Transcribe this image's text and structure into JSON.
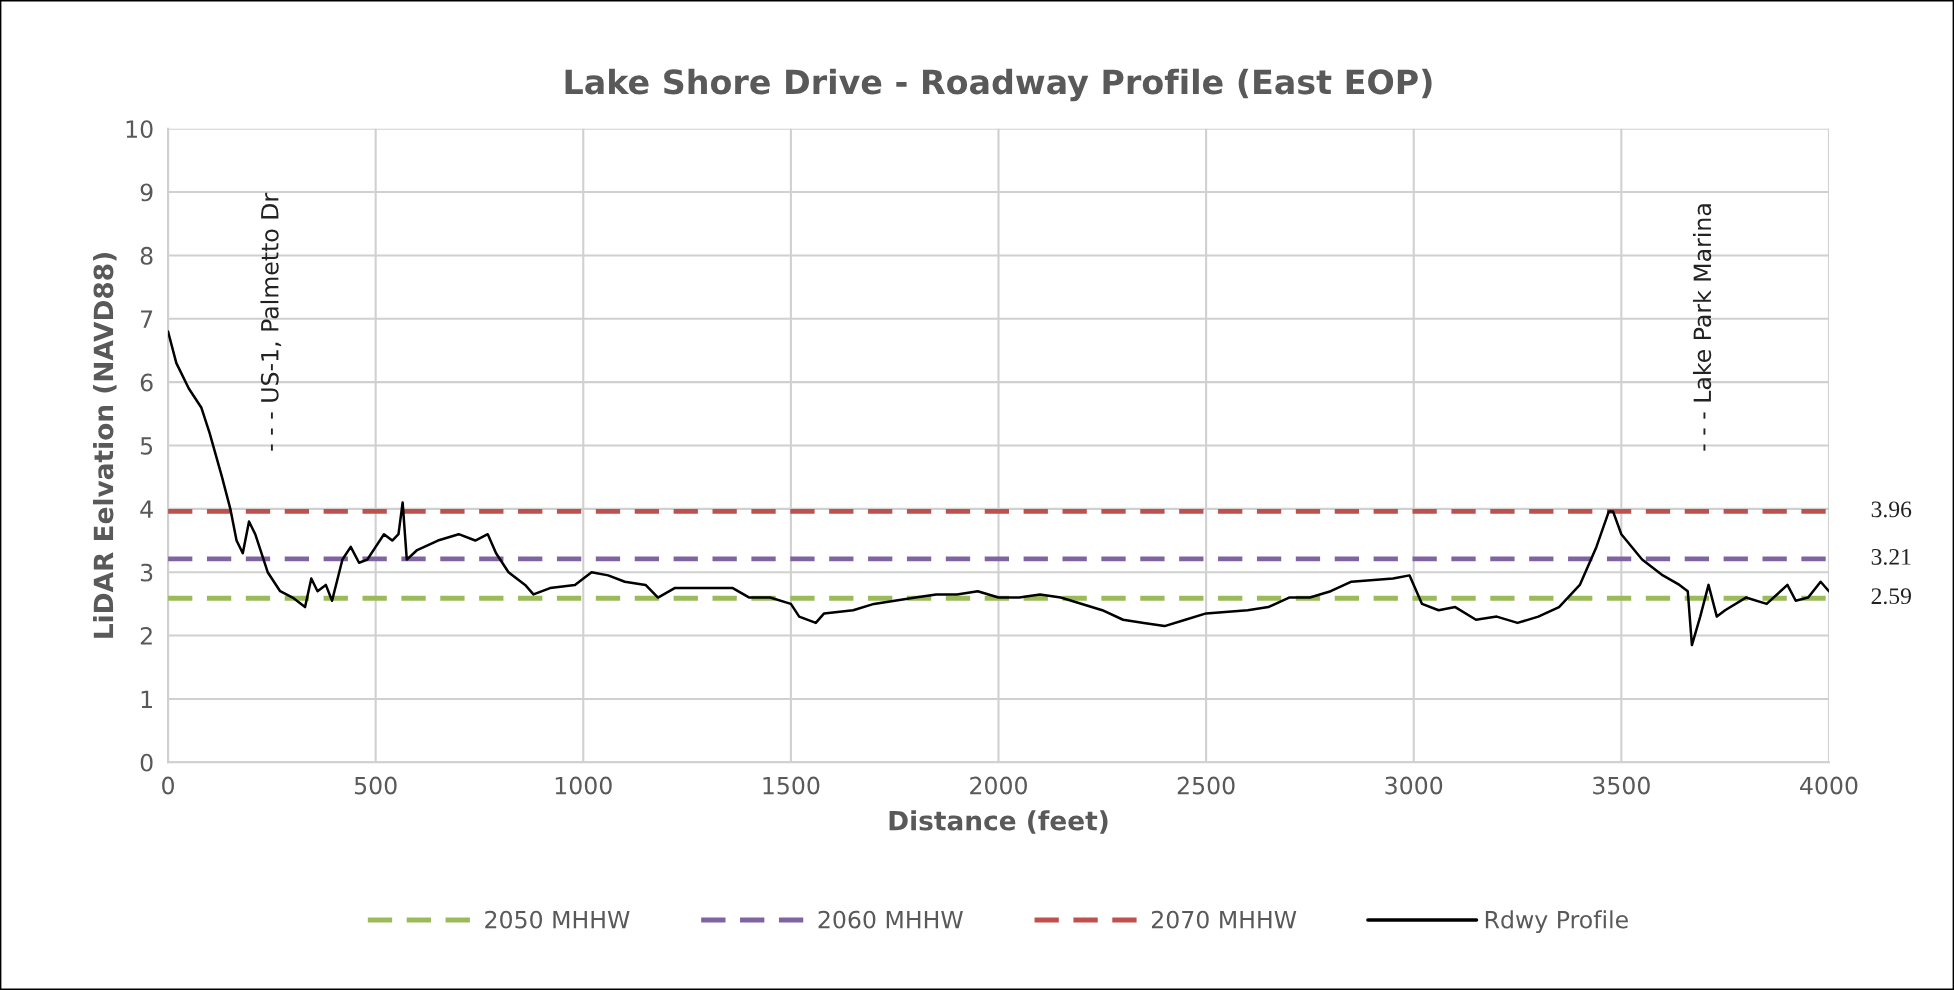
{
  "chart_data": {
    "type": "line",
    "title": "Lake Shore Drive - Roadway Profile (East EOP)",
    "xlabel": "Distance (feet)",
    "ylabel": "LiDAR Eelvation (NAVD88)",
    "xlim": [
      0,
      4000
    ],
    "xticks": [
      0,
      500,
      1000,
      1500,
      2000,
      2500,
      3000,
      3500,
      4000
    ],
    "ylim": [
      0,
      10
    ],
    "yticks": [
      0,
      1,
      2,
      3,
      4,
      5,
      6,
      7,
      8,
      9,
      10
    ],
    "grid": true,
    "legend": "bottom",
    "marker": "none",
    "annotations": [
      "- - - US-1, Palmetto Dr",
      "- - - Lake Park Marina"
    ],
    "series": [
      {
        "name": "2050 MHHW",
        "color": "#9bbb59",
        "line_style": "dashed",
        "x": [
          0,
          4000
        ],
        "values": [
          2.59,
          2.59
        ],
        "value_labels": [
          null,
          "2.59"
        ]
      },
      {
        "name": "2060 MHHW",
        "color": "#8064a2",
        "line_style": "dashed",
        "x": [
          0,
          4000
        ],
        "values": [
          3.21,
          3.21
        ],
        "value_labels": [
          null,
          "3.21"
        ]
      },
      {
        "name": "2070 MHHW",
        "color": "#c0504d",
        "line_style": "dashed",
        "x": [
          0,
          4000
        ],
        "values": [
          3.96,
          3.96
        ],
        "value_labels": [
          null,
          "3.96"
        ]
      },
      {
        "name": "Rdwy Profile",
        "color": "#000000",
        "line_style": "solid",
        "x": [
          0,
          20,
          50,
          80,
          100,
          130,
          150,
          165,
          180,
          195,
          210,
          240,
          270,
          300,
          330,
          345,
          360,
          380,
          395,
          420,
          440,
          460,
          480,
          500,
          520,
          540,
          555,
          565,
          575,
          600,
          650,
          700,
          740,
          770,
          790,
          820,
          860,
          880,
          920,
          980,
          1020,
          1060,
          1100,
          1150,
          1180,
          1220,
          1300,
          1360,
          1400,
          1450,
          1500,
          1520,
          1560,
          1580,
          1650,
          1700,
          1800,
          1850,
          1900,
          1950,
          2000,
          2050,
          2100,
          2150,
          2250,
          2300,
          2350,
          2400,
          2450,
          2500,
          2600,
          2650,
          2700,
          2750,
          2800,
          2850,
          2950,
          2990,
          3020,
          3060,
          3100,
          3150,
          3200,
          3250,
          3300,
          3350,
          3400,
          3440,
          3470,
          3480,
          3500,
          3550,
          3600,
          3640,
          3660,
          3670,
          3690,
          3710,
          3730,
          3750,
          3800,
          3850,
          3900,
          3920,
          3950,
          3980,
          4000
        ],
        "values": [
          6.8,
          6.3,
          5.9,
          5.6,
          5.2,
          4.5,
          4.0,
          3.5,
          3.3,
          3.8,
          3.6,
          3.0,
          2.7,
          2.6,
          2.45,
          2.9,
          2.7,
          2.8,
          2.55,
          3.2,
          3.4,
          3.15,
          3.2,
          3.4,
          3.6,
          3.5,
          3.6,
          4.1,
          3.2,
          3.35,
          3.5,
          3.6,
          3.5,
          3.6,
          3.3,
          3.0,
          2.8,
          2.65,
          2.75,
          2.8,
          3.0,
          2.95,
          2.85,
          2.8,
          2.6,
          2.75,
          2.75,
          2.75,
          2.6,
          2.6,
          2.5,
          2.3,
          2.2,
          2.35,
          2.4,
          2.5,
          2.6,
          2.65,
          2.65,
          2.7,
          2.6,
          2.6,
          2.65,
          2.6,
          2.4,
          2.25,
          2.2,
          2.15,
          2.25,
          2.35,
          2.4,
          2.45,
          2.6,
          2.6,
          2.7,
          2.85,
          2.9,
          2.95,
          2.5,
          2.4,
          2.45,
          2.25,
          2.3,
          2.2,
          2.3,
          2.45,
          2.8,
          3.4,
          3.96,
          3.96,
          3.6,
          3.2,
          2.95,
          2.8,
          2.7,
          1.85,
          2.3,
          2.8,
          2.3,
          2.4,
          2.6,
          2.5,
          2.8,
          2.55,
          2.6,
          2.85,
          2.7
        ]
      }
    ]
  }
}
